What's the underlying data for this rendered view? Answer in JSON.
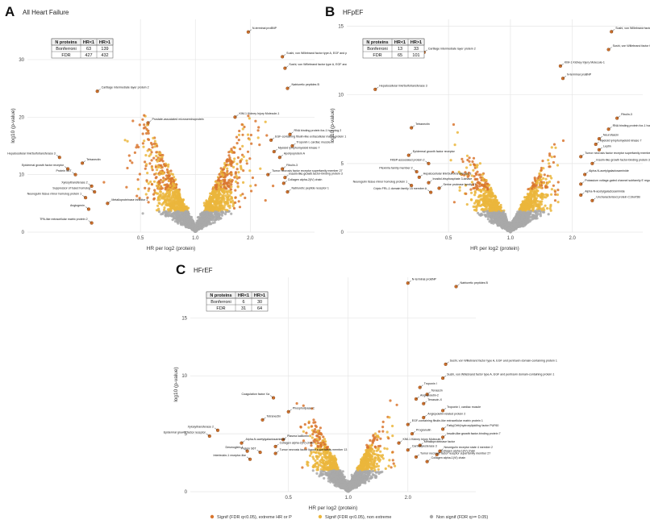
{
  "colors": {
    "extreme": "#d9762f",
    "nonextreme": "#ebb63c",
    "nonsig": "#a9a9a9",
    "grid": "#e6e6e6"
  },
  "legend": {
    "items": [
      {
        "label": "Signif (FDR q<0.05), extreme HR or P",
        "color": "#d9762f"
      },
      {
        "label": "Signif (FDR q<0.05), non extreme",
        "color": "#ebb63c"
      },
      {
        "label": "Non signif (FDR q>= 0.05)",
        "color": "#a9a9a9"
      }
    ]
  },
  "chart_data": [
    {
      "id": "A",
      "type": "scatter",
      "letter": "A",
      "title": "All Heart Failure",
      "xlabel": "HR per log2 (protein)",
      "ylabel": "log10 (p-value)",
      "xscale": "log",
      "x_ticks": [
        "0.5",
        "1.0",
        "2.0"
      ],
      "y_ticks": [
        0,
        10,
        20,
        30
      ],
      "ylim": [
        0,
        37
      ],
      "grid": true,
      "table": {
        "headers": [
          "N proteins",
          "HR<1",
          "HR>1"
        ],
        "rows": [
          [
            "Bonferroni",
            "63",
            "139"
          ],
          [
            "FDR",
            "427",
            "432"
          ]
        ]
      },
      "labels": [
        {
          "text": "N-terminal proBNP",
          "x": 1.95,
          "y": 34.8,
          "side": "r"
        },
        {
          "text": "Sushi, von Willebrand factor type A, EGF and pentraxin domain-containing protein 1",
          "x": 3.0,
          "y": 30.5,
          "side": "r"
        },
        {
          "text": "Sushi, von Willebrand factor type A, EGF and pentraxin domain-containing protein 1",
          "x": 3.1,
          "y": 28.5,
          "side": "r"
        },
        {
          "text": "Natriuretic peptides B",
          "x": 3.2,
          "y": 25.0,
          "side": "r"
        },
        {
          "text": "Cartilage intermediate layer protein 2",
          "x": 0.29,
          "y": 24.5,
          "side": "r"
        },
        {
          "text": "KIM-1 Kidney Injury Molecule-1",
          "x": 1.65,
          "y": 20.0,
          "side": "r"
        },
        {
          "text": "Prostate-associated microseminoprotein",
          "x": 0.55,
          "y": 19.0,
          "side": "r"
        },
        {
          "text": "RNA binding protein fox-1 homolog 2",
          "x": 3.3,
          "y": 17.0,
          "side": "r"
        },
        {
          "text": "EGF-containing fibulin-like extracellular matrix protein 1",
          "x": 2.6,
          "y": 16.0,
          "side": "r"
        },
        {
          "text": "Troponin I, cardiac muscle",
          "x": 3.4,
          "y": 15.0,
          "side": "r"
        },
        {
          "text": "Hepatocellular link/Sulfotransferase 3",
          "x": 0.18,
          "y": 13.0,
          "side": "l"
        },
        {
          "text": "Myeloid lymphomyeloid kinase 7",
          "x": 2.7,
          "y": 14.0,
          "side": "r"
        },
        {
          "text": "Tetranectin",
          "x": 0.24,
          "y": 12.0,
          "side": "r"
        },
        {
          "text": "Epidermal growth factor receptor",
          "x": 0.2,
          "y": 11.0,
          "side": "l"
        },
        {
          "text": "Protein S6T",
          "x": 0.22,
          "y": 10.0,
          "side": "l"
        },
        {
          "text": "Apolipoprotein A",
          "x": 2.9,
          "y": 13.0,
          "side": "r"
        },
        {
          "text": "Fibulin-3",
          "x": 3.0,
          "y": 11.0,
          "side": "r"
        },
        {
          "text": "Tumor necrosis factor receptor superfamily member 27",
          "x": 2.5,
          "y": 10.0,
          "side": "r"
        },
        {
          "text": "Insulin-like growth factor-binding protein 3",
          "x": 3.1,
          "y": 9.5,
          "side": "r"
        },
        {
          "text": "Collagen alpha-2(IV) chain",
          "x": 3.05,
          "y": 8.5,
          "side": "r"
        },
        {
          "text": "Xylosyltransferase 2",
          "x": 0.27,
          "y": 8.0,
          "side": "l"
        },
        {
          "text": "Suppressor of fused homolog",
          "x": 0.28,
          "y": 7.0,
          "side": "l"
        },
        {
          "text": "Neuregulin tissue minor homolog protein 1",
          "x": 0.25,
          "y": 6.0,
          "side": "l"
        },
        {
          "text": "Natriuretic peptide receptor 1",
          "x": 3.2,
          "y": 7.0,
          "side": "r"
        },
        {
          "text": "Metalloproteinase inhibitor 1",
          "x": 0.33,
          "y": 5.0,
          "side": "r"
        },
        {
          "text": "Angiogenin",
          "x": 0.26,
          "y": 4.0,
          "side": "l"
        },
        {
          "text": "TPA-like extracellular matrix protein 2",
          "x": 0.27,
          "y": 1.6,
          "side": "l"
        }
      ]
    },
    {
      "id": "B",
      "type": "scatter",
      "letter": "B",
      "title": "HFpEF",
      "xlabel": "HR per log2 (protein)",
      "ylabel": "log10 (p-value)",
      "xscale": "log",
      "x_ticks": [
        "0.5",
        "1.0",
        "2.0"
      ],
      "y_ticks": [
        0,
        5,
        10,
        15
      ],
      "ylim": [
        0,
        15.5
      ],
      "grid": true,
      "table": {
        "headers": [
          "N proteins",
          "HR<1",
          "HR>1"
        ],
        "rows": [
          [
            "Bonferroni",
            "13",
            "33"
          ],
          [
            "FDR",
            "65",
            "101"
          ]
        ]
      },
      "labels": [
        {
          "text": "Sushi, von Willebrand factor type A, EGF and pentraxin domain-containing protein 1",
          "x": 3.1,
          "y": 14.6,
          "side": "r"
        },
        {
          "text": "Sushi, von Willebrand factor type A, EGF and pentraxin domain-containing protein 1",
          "x": 3.0,
          "y": 13.3,
          "side": "r"
        },
        {
          "text": "Cartilage intermediate layer protein 2",
          "x": 0.38,
          "y": 13.1,
          "side": "r"
        },
        {
          "text": "KIM-1 Kidney Injury Molecule-1",
          "x": 1.75,
          "y": 12.1,
          "side": "r"
        },
        {
          "text": "N-terminal proBNP",
          "x": 1.8,
          "y": 11.2,
          "side": "r"
        },
        {
          "text": "Hepatocellular link/Sulfotransferase 3",
          "x": 0.22,
          "y": 10.4,
          "side": "r"
        },
        {
          "text": "Fibulin-3",
          "x": 3.3,
          "y": 8.3,
          "side": "r"
        },
        {
          "text": "Tetranectin",
          "x": 0.33,
          "y": 7.6,
          "side": "r"
        },
        {
          "text": "RNA binding protein fox-1 homolog 2",
          "x": 3.0,
          "y": 7.5,
          "side": "r"
        },
        {
          "text": "Neurofascin",
          "x": 2.7,
          "y": 6.8,
          "side": "r"
        },
        {
          "text": "Myeloid lymphomyeloid kinase 7",
          "x": 2.6,
          "y": 6.4,
          "side": "r"
        },
        {
          "text": "Leptin",
          "x": 2.7,
          "y": 6.0,
          "side": "r"
        },
        {
          "text": "Epidermal growth factor receptor",
          "x": 0.32,
          "y": 5.6,
          "side": "r"
        },
        {
          "text": "Tumor necrosis factor receptor superfamily member 27",
          "x": 2.2,
          "y": 5.5,
          "side": "r"
        },
        {
          "text": "Insulin-like growth factor-binding protein 3",
          "x": 2.5,
          "y": 5.0,
          "side": "r"
        },
        {
          "text": "FKBP-associated protein 2",
          "x": 0.4,
          "y": 5.0,
          "side": "l"
        },
        {
          "text": "Plexin/Ia family member 2",
          "x": 0.35,
          "y": 4.4,
          "side": "l"
        },
        {
          "text": "Alpha-N-acetylgalactosaminide",
          "x": 2.3,
          "y": 4.2,
          "side": "r"
        },
        {
          "text": "Hepatocellular link/Sulfotransferase 3",
          "x": 0.36,
          "y": 4.0,
          "side": "r"
        },
        {
          "text": "Inositol-trisphosphate 3-kinase",
          "x": 0.4,
          "y": 3.6,
          "side": "r"
        },
        {
          "text": "Neuregulin tissue minor homolog protein 1",
          "x": 0.33,
          "y": 3.4,
          "side": "l"
        },
        {
          "text": "Potassium voltage-gated channel subfamily E regulatory beta subunit 5",
          "x": 2.2,
          "y": 3.5,
          "side": "r"
        },
        {
          "text": "Serine protease family 27",
          "x": 0.45,
          "y": 3.2,
          "side": "r"
        },
        {
          "text": "Cripto FRL-1 domain family 15 member A",
          "x": 0.41,
          "y": 2.9,
          "side": "l"
        },
        {
          "text": "Alpha-N-acetylgalactosaminide",
          "x": 2.2,
          "y": 2.7,
          "side": "r"
        },
        {
          "text": "Uncharacterized protein C19orf3B",
          "x": 2.5,
          "y": 2.3,
          "side": "r"
        }
      ]
    },
    {
      "id": "C",
      "type": "scatter",
      "letter": "C",
      "title": "HFrEF",
      "xlabel": "HR per log2 (protein)",
      "ylabel": "log10 (p-value)",
      "xscale": "log",
      "x_ticks": [
        "0.5",
        "1.0",
        "2.0"
      ],
      "y_ticks": [
        0,
        5,
        10,
        15
      ],
      "ylim": [
        0,
        18.5
      ],
      "grid": true,
      "table": {
        "headers": [
          "N proteins",
          "HR<1",
          "HR>1"
        ],
        "rows": [
          [
            "Bonferroni",
            "6",
            "30"
          ],
          [
            "FDR",
            "31",
            "64"
          ]
        ]
      },
      "labels": [
        {
          "text": "N-terminal proBNP",
          "x": 2.0,
          "y": 18.0,
          "side": "r"
        },
        {
          "text": "Natriuretic peptides B",
          "x": 3.5,
          "y": 17.7,
          "side": "r"
        },
        {
          "text": "Sushi, von Willebrand factor type A, EGF and pentraxin domain-containing protein 1",
          "x": 3.1,
          "y": 11.0,
          "side": "r"
        },
        {
          "text": "Sushi, von Willebrand factor type A, EGF and pentraxin domain-containing protein 1",
          "x": 3.0,
          "y": 9.8,
          "side": "r"
        },
        {
          "text": "Troponin I",
          "x": 2.3,
          "y": 9.0,
          "side": "r"
        },
        {
          "text": "Tenascin",
          "x": 2.5,
          "y": 8.4,
          "side": "r"
        },
        {
          "text": "Angiopoietin-2",
          "x": 2.2,
          "y": 8.0,
          "side": "r"
        },
        {
          "text": "Tenascin-X",
          "x": 2.4,
          "y": 7.6,
          "side": "r"
        },
        {
          "text": "Coagulation factor Xa",
          "x": 0.42,
          "y": 8.1,
          "side": "l"
        },
        {
          "text": "Troponin I, cardiac muscle",
          "x": 3.0,
          "y": 7.0,
          "side": "r"
        },
        {
          "text": "Phospholipase-C",
          "x": 0.5,
          "y": 6.9,
          "side": "r"
        },
        {
          "text": "Angiopoietin-related protein 2",
          "x": 2.4,
          "y": 6.4,
          "side": "r"
        },
        {
          "text": "Tetranectin",
          "x": 0.37,
          "y": 6.2,
          "side": "r"
        },
        {
          "text": "EGF-containing fibulin-like extracellular matrix protein 1",
          "x": 2.0,
          "y": 5.8,
          "side": "r"
        },
        {
          "text": "Xylosyltransferase 2",
          "x": 0.22,
          "y": 5.3,
          "side": "l"
        },
        {
          "text": "Fatty(Orth)hydroxylipid/ing factor PUF60",
          "x": 3.0,
          "y": 5.4,
          "side": "r"
        },
        {
          "text": "Epidermal growth factor receptor",
          "x": 0.2,
          "y": 4.8,
          "side": "l"
        },
        {
          "text": "Progranulin",
          "x": 2.1,
          "y": 5.0,
          "side": "r"
        },
        {
          "text": "Insulin-like growth factor-binding protein 7",
          "x": 3.0,
          "y": 4.7,
          "side": "r"
        },
        {
          "text": "Plasma kallikrein",
          "x": 0.47,
          "y": 4.5,
          "side": "r"
        },
        {
          "text": "Alpha-N-acetylgalactosaminide",
          "x": 0.29,
          "y": 4.2,
          "side": "r"
        },
        {
          "text": "KIM-1 Kidney Injury Molecule-1",
          "x": 1.8,
          "y": 4.2,
          "side": "r"
        },
        {
          "text": "Metalloproteinase factor",
          "x": 2.3,
          "y": 4.0,
          "side": "r"
        },
        {
          "text": "Collagen alpha-2(IV) chain",
          "x": 0.43,
          "y": 3.9,
          "side": "r"
        },
        {
          "text": "Carboxylesterase 3",
          "x": 2.0,
          "y": 3.6,
          "side": "r"
        },
        {
          "text": "Neuregulin receptor state 4 member 2",
          "x": 2.9,
          "y": 3.5,
          "side": "r"
        },
        {
          "text": "Desmoglein-1",
          "x": 0.31,
          "y": 3.5,
          "side": "l"
        },
        {
          "text": "Protein S6T",
          "x": 0.36,
          "y": 3.4,
          "side": "l"
        },
        {
          "text": "Tumor necrosis factor ligand superfamily member 13",
          "x": 0.43,
          "y": 3.3,
          "side": "r"
        },
        {
          "text": "Collagen alpha-1(IV) chain",
          "x": 2.8,
          "y": 3.2,
          "side": "r"
        },
        {
          "text": "Tumor necrosis factor receptor superfamily member 27",
          "x": 2.2,
          "y": 3.0,
          "side": "r"
        },
        {
          "text": "Interleukin-1 receptor-like",
          "x": 0.32,
          "y": 2.8,
          "side": "l"
        },
        {
          "text": "Collagen alpha-1(VI) chain",
          "x": 2.5,
          "y": 2.6,
          "side": "r"
        }
      ]
    }
  ]
}
